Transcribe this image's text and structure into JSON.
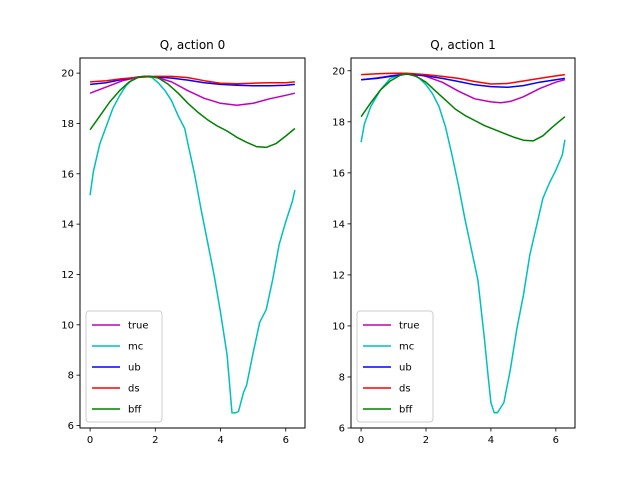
{
  "chart_data": [
    {
      "type": "line",
      "title": "Q, action 0",
      "xlabel": "",
      "ylabel": "",
      "xlim": [
        -0.31,
        6.59
      ],
      "ylim": [
        5.9,
        20.6
      ],
      "xticks": [
        0,
        2,
        4,
        6
      ],
      "yticks": [
        6,
        8,
        10,
        12,
        14,
        16,
        18,
        20
      ],
      "grid": false,
      "legend_placement": "lower-left",
      "series": [
        {
          "name": "true",
          "color": "#bf00bf",
          "x": [
            0,
            0.5,
            1.0,
            1.5,
            1.8,
            2.0,
            2.5,
            3.0,
            3.5,
            4.0,
            4.5,
            5.0,
            5.5,
            6.0,
            6.28
          ],
          "y": [
            19.2,
            19.45,
            19.7,
            19.85,
            19.87,
            19.85,
            19.65,
            19.3,
            19.0,
            18.8,
            18.72,
            18.8,
            18.98,
            19.12,
            19.2
          ]
        },
        {
          "name": "mc",
          "color": "#00bfbf",
          "x": [
            0,
            0.1,
            0.3,
            0.5,
            0.7,
            0.9,
            1.1,
            1.3,
            1.5,
            1.7,
            1.9,
            2.1,
            2.3,
            2.5,
            2.7,
            2.9,
            3.0,
            3.1,
            3.2,
            3.4,
            3.6,
            3.8,
            4.0,
            4.2,
            4.35,
            4.45,
            4.55,
            4.7,
            4.8,
            5.0,
            5.2,
            5.4,
            5.6,
            5.8,
            6.0,
            6.2,
            6.28
          ],
          "y": [
            15.15,
            16.1,
            17.2,
            17.9,
            18.6,
            19.1,
            19.5,
            19.75,
            19.85,
            19.88,
            19.82,
            19.6,
            19.3,
            18.9,
            18.3,
            17.8,
            17.2,
            16.6,
            16.0,
            14.6,
            13.3,
            12.0,
            10.5,
            8.8,
            6.5,
            6.5,
            6.55,
            7.3,
            7.6,
            8.9,
            10.1,
            10.6,
            11.8,
            13.2,
            14.1,
            14.9,
            15.35
          ]
        },
        {
          "name": "ub",
          "color": "#0000ff",
          "x": [
            0,
            0.5,
            1.0,
            1.5,
            1.8,
            2.0,
            2.5,
            3.0,
            3.5,
            4.0,
            4.5,
            5.0,
            5.5,
            6.0,
            6.28
          ],
          "y": [
            19.55,
            19.62,
            19.75,
            19.85,
            19.87,
            19.85,
            19.8,
            19.72,
            19.62,
            19.55,
            19.52,
            19.5,
            19.5,
            19.52,
            19.55
          ]
        },
        {
          "name": "ds",
          "color": "#ff0000",
          "x": [
            0,
            0.5,
            1.0,
            1.5,
            2.0,
            2.5,
            3.0,
            3.5,
            4.0,
            4.5,
            5.0,
            5.5,
            6.0,
            6.28
          ],
          "y": [
            19.65,
            19.7,
            19.78,
            19.83,
            19.87,
            19.87,
            19.82,
            19.7,
            19.6,
            19.58,
            19.6,
            19.62,
            19.62,
            19.65
          ]
        },
        {
          "name": "bff",
          "color": "#008000",
          "x": [
            0,
            0.3,
            0.6,
            0.9,
            1.2,
            1.5,
            1.8,
            2.1,
            2.4,
            2.7,
            3.0,
            3.3,
            3.6,
            3.9,
            4.2,
            4.5,
            4.8,
            5.1,
            5.4,
            5.7,
            6.0,
            6.28
          ],
          "y": [
            17.75,
            18.3,
            18.85,
            19.3,
            19.65,
            19.85,
            19.88,
            19.8,
            19.55,
            19.2,
            18.8,
            18.45,
            18.15,
            17.9,
            17.7,
            17.45,
            17.25,
            17.08,
            17.05,
            17.2,
            17.5,
            17.8
          ]
        }
      ]
    },
    {
      "type": "line",
      "title": "Q, action 1",
      "xlabel": "",
      "ylabel": "",
      "xlim": [
        -0.31,
        6.59
      ],
      "ylim": [
        6.0,
        20.5
      ],
      "xticks": [
        0,
        2,
        4,
        6
      ],
      "yticks": [
        6,
        8,
        10,
        12,
        14,
        16,
        18,
        20
      ],
      "grid": false,
      "legend_placement": "lower-left",
      "series": [
        {
          "name": "true",
          "color": "#bf00bf",
          "x": [
            0,
            0.5,
            1.0,
            1.4,
            1.8,
            2.0,
            2.5,
            3.0,
            3.5,
            4.0,
            4.3,
            4.6,
            5.0,
            5.5,
            6.0,
            6.28
          ],
          "y": [
            19.65,
            19.72,
            19.82,
            19.87,
            19.85,
            19.78,
            19.55,
            19.2,
            18.9,
            18.78,
            18.75,
            18.8,
            18.98,
            19.3,
            19.55,
            19.65
          ]
        },
        {
          "name": "mc",
          "color": "#00bfbf",
          "x": [
            0,
            0.1,
            0.3,
            0.6,
            0.9,
            1.2,
            1.4,
            1.6,
            1.8,
            2.0,
            2.2,
            2.4,
            2.6,
            2.8,
            3.0,
            3.2,
            3.4,
            3.6,
            3.8,
            3.9,
            4.0,
            4.1,
            4.2,
            4.3,
            4.4,
            4.6,
            4.8,
            5.0,
            5.2,
            5.4,
            5.6,
            5.8,
            6.0,
            6.2,
            6.28
          ],
          "y": [
            17.2,
            17.9,
            18.6,
            19.25,
            19.7,
            19.85,
            19.88,
            19.85,
            19.7,
            19.45,
            19.1,
            18.6,
            17.8,
            16.7,
            15.5,
            14.2,
            13.0,
            11.8,
            9.5,
            8.2,
            7.0,
            6.6,
            6.6,
            6.8,
            7.0,
            8.3,
            9.9,
            11.2,
            12.8,
            13.9,
            15.0,
            15.6,
            16.1,
            16.7,
            17.3
          ]
        },
        {
          "name": "ub",
          "color": "#0000ff",
          "x": [
            0,
            0.5,
            1.0,
            1.4,
            2.0,
            2.5,
            3.0,
            3.5,
            4.0,
            4.5,
            5.0,
            5.5,
            6.0,
            6.28
          ],
          "y": [
            19.65,
            19.7,
            19.8,
            19.87,
            19.8,
            19.7,
            19.58,
            19.45,
            19.38,
            19.35,
            19.42,
            19.55,
            19.65,
            19.7
          ]
        },
        {
          "name": "ds",
          "color": "#ff0000",
          "x": [
            0,
            0.5,
            1.0,
            1.4,
            2.0,
            2.5,
            3.0,
            3.5,
            4.0,
            4.5,
            5.0,
            5.5,
            6.0,
            6.28
          ],
          "y": [
            19.85,
            19.88,
            19.9,
            19.9,
            19.85,
            19.78,
            19.7,
            19.58,
            19.48,
            19.5,
            19.6,
            19.7,
            19.8,
            19.85
          ]
        },
        {
          "name": "bff",
          "color": "#008000",
          "x": [
            0,
            0.3,
            0.6,
            0.9,
            1.2,
            1.4,
            1.7,
            2.0,
            2.3,
            2.6,
            2.9,
            3.2,
            3.5,
            3.8,
            4.1,
            4.4,
            4.7,
            5.0,
            5.3,
            5.6,
            5.9,
            6.28
          ],
          "y": [
            18.2,
            18.75,
            19.25,
            19.6,
            19.82,
            19.88,
            19.78,
            19.55,
            19.2,
            18.85,
            18.5,
            18.25,
            18.05,
            17.85,
            17.7,
            17.55,
            17.4,
            17.28,
            17.25,
            17.45,
            17.8,
            18.2
          ]
        }
      ]
    }
  ]
}
